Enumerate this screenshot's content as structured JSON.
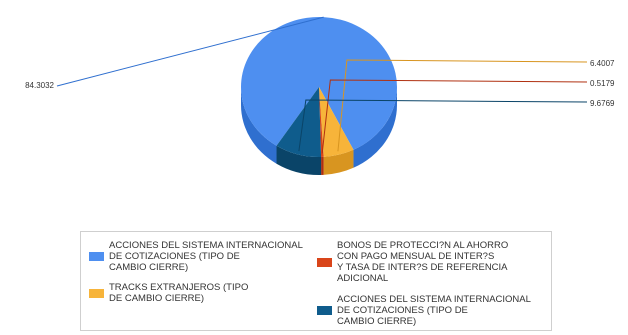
{
  "chart_data": {
    "type": "pie",
    "style": "3d",
    "slices": [
      {
        "label": "ACCIONES DEL SISTEMA INTERNACIONAL DE COTIZACIONES (TIPO DE CAMBIO CIERRE)",
        "value": 84.3032,
        "value_label": "84.3032",
        "color": "#4e8ff0",
        "side_color": "#2f6fcf"
      },
      {
        "label": "TRACKS EXTRANJEROS (TIPO DE CAMBIO CIERRE)",
        "value": 6.4007,
        "value_label": "6.4007",
        "color": "#f7b43a",
        "side_color": "#d89520"
      },
      {
        "label": "BONOS DE PROTECCI?N AL AHORRO CON PAGO MENSUAL DE INTER?S Y TASA DE INTER?S DE REFERENCIA ADICIONAL",
        "value": 0.5179,
        "value_label": "0.5179",
        "color": "#d9451a",
        "side_color": "#b03010"
      },
      {
        "label": "ACCIONES DEL SISTEMA INTERNACIONAL DE COTIZACIONES (TIPO DE CAMBIO CIERRE)",
        "value": 9.6769,
        "value_label": "9.6769",
        "color": "#0f5c8c",
        "side_color": "#0a4468"
      }
    ],
    "legend_position": "bottom",
    "legend": [
      {
        "slice": 0,
        "text": "ACCIONES DEL SISTEMA INTERNACIONAL\nDE COTIZACIONES (TIPO DE\nCAMBIO CIERRE)"
      },
      {
        "slice": 1,
        "text": "TRACKS EXTRANJEROS (TIPO\nDE CAMBIO CIERRE)"
      },
      {
        "slice": 2,
        "text": "BONOS DE PROTECCI?N AL AHORRO\nCON PAGO MENSUAL DE INTER?S\nY TASA DE INTER?S DE REFERENCIA\nADICIONAL"
      },
      {
        "slice": 3,
        "text": "ACCIONES DEL SISTEMA INTERNACIONAL\nDE COTIZACIONES (TIPO DE\nCAMBIO CIERRE)"
      }
    ]
  }
}
